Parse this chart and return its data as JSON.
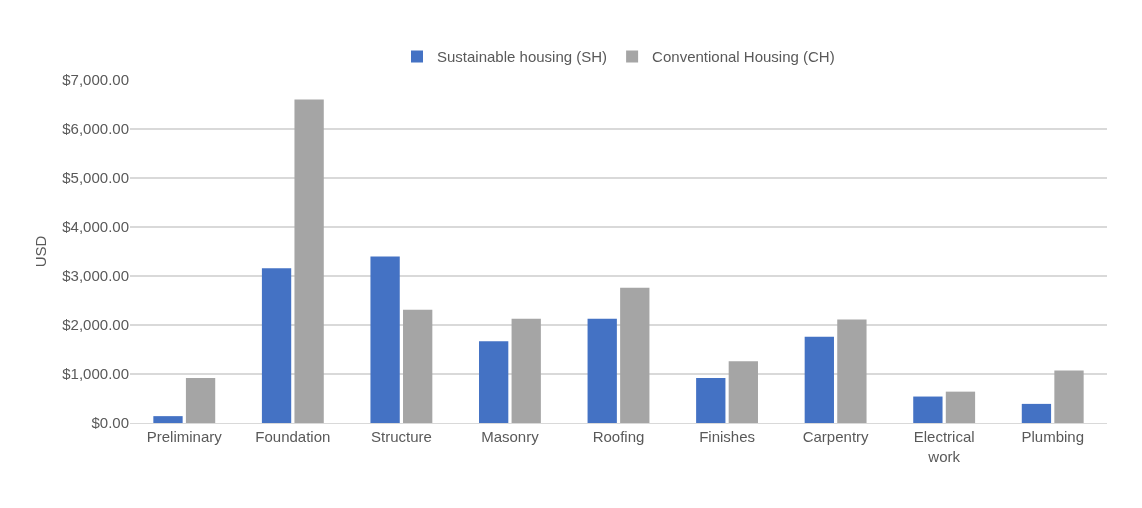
{
  "chart_data": {
    "type": "bar",
    "ylabel": "USD",
    "categories": [
      "Preliminary",
      "Foundation",
      "Structure",
      "Masonry",
      "Roofing",
      "Finishes",
      "Carpentry",
      "Electrical work",
      "Plumbing"
    ],
    "series": [
      {
        "name": "Sustainable housing (SH)",
        "color": "#4472c4",
        "values": [
          140,
          3160,
          3400,
          1670,
          2130,
          920,
          1760,
          540,
          390
        ]
      },
      {
        "name": "Conventional Housing (CH)",
        "color": "#a5a5a5",
        "values": [
          920,
          6600,
          2310,
          2130,
          2760,
          1260,
          2110,
          640,
          1070
        ]
      }
    ],
    "ylim": [
      0,
      7000
    ],
    "yticks": [
      {
        "value": 0,
        "label": "$0.00"
      },
      {
        "value": 1000,
        "label": "$1,000.00"
      },
      {
        "value": 2000,
        "label": "$2,000.00"
      },
      {
        "value": 3000,
        "label": "$3,000.00"
      },
      {
        "value": 4000,
        "label": "$4,000.00"
      },
      {
        "value": 5000,
        "label": "$5,000.00"
      },
      {
        "value": 6000,
        "label": "$6,000.00"
      },
      {
        "value": 7000,
        "label": "$7,000.00"
      }
    ],
    "grid": "y",
    "legend": "top"
  }
}
